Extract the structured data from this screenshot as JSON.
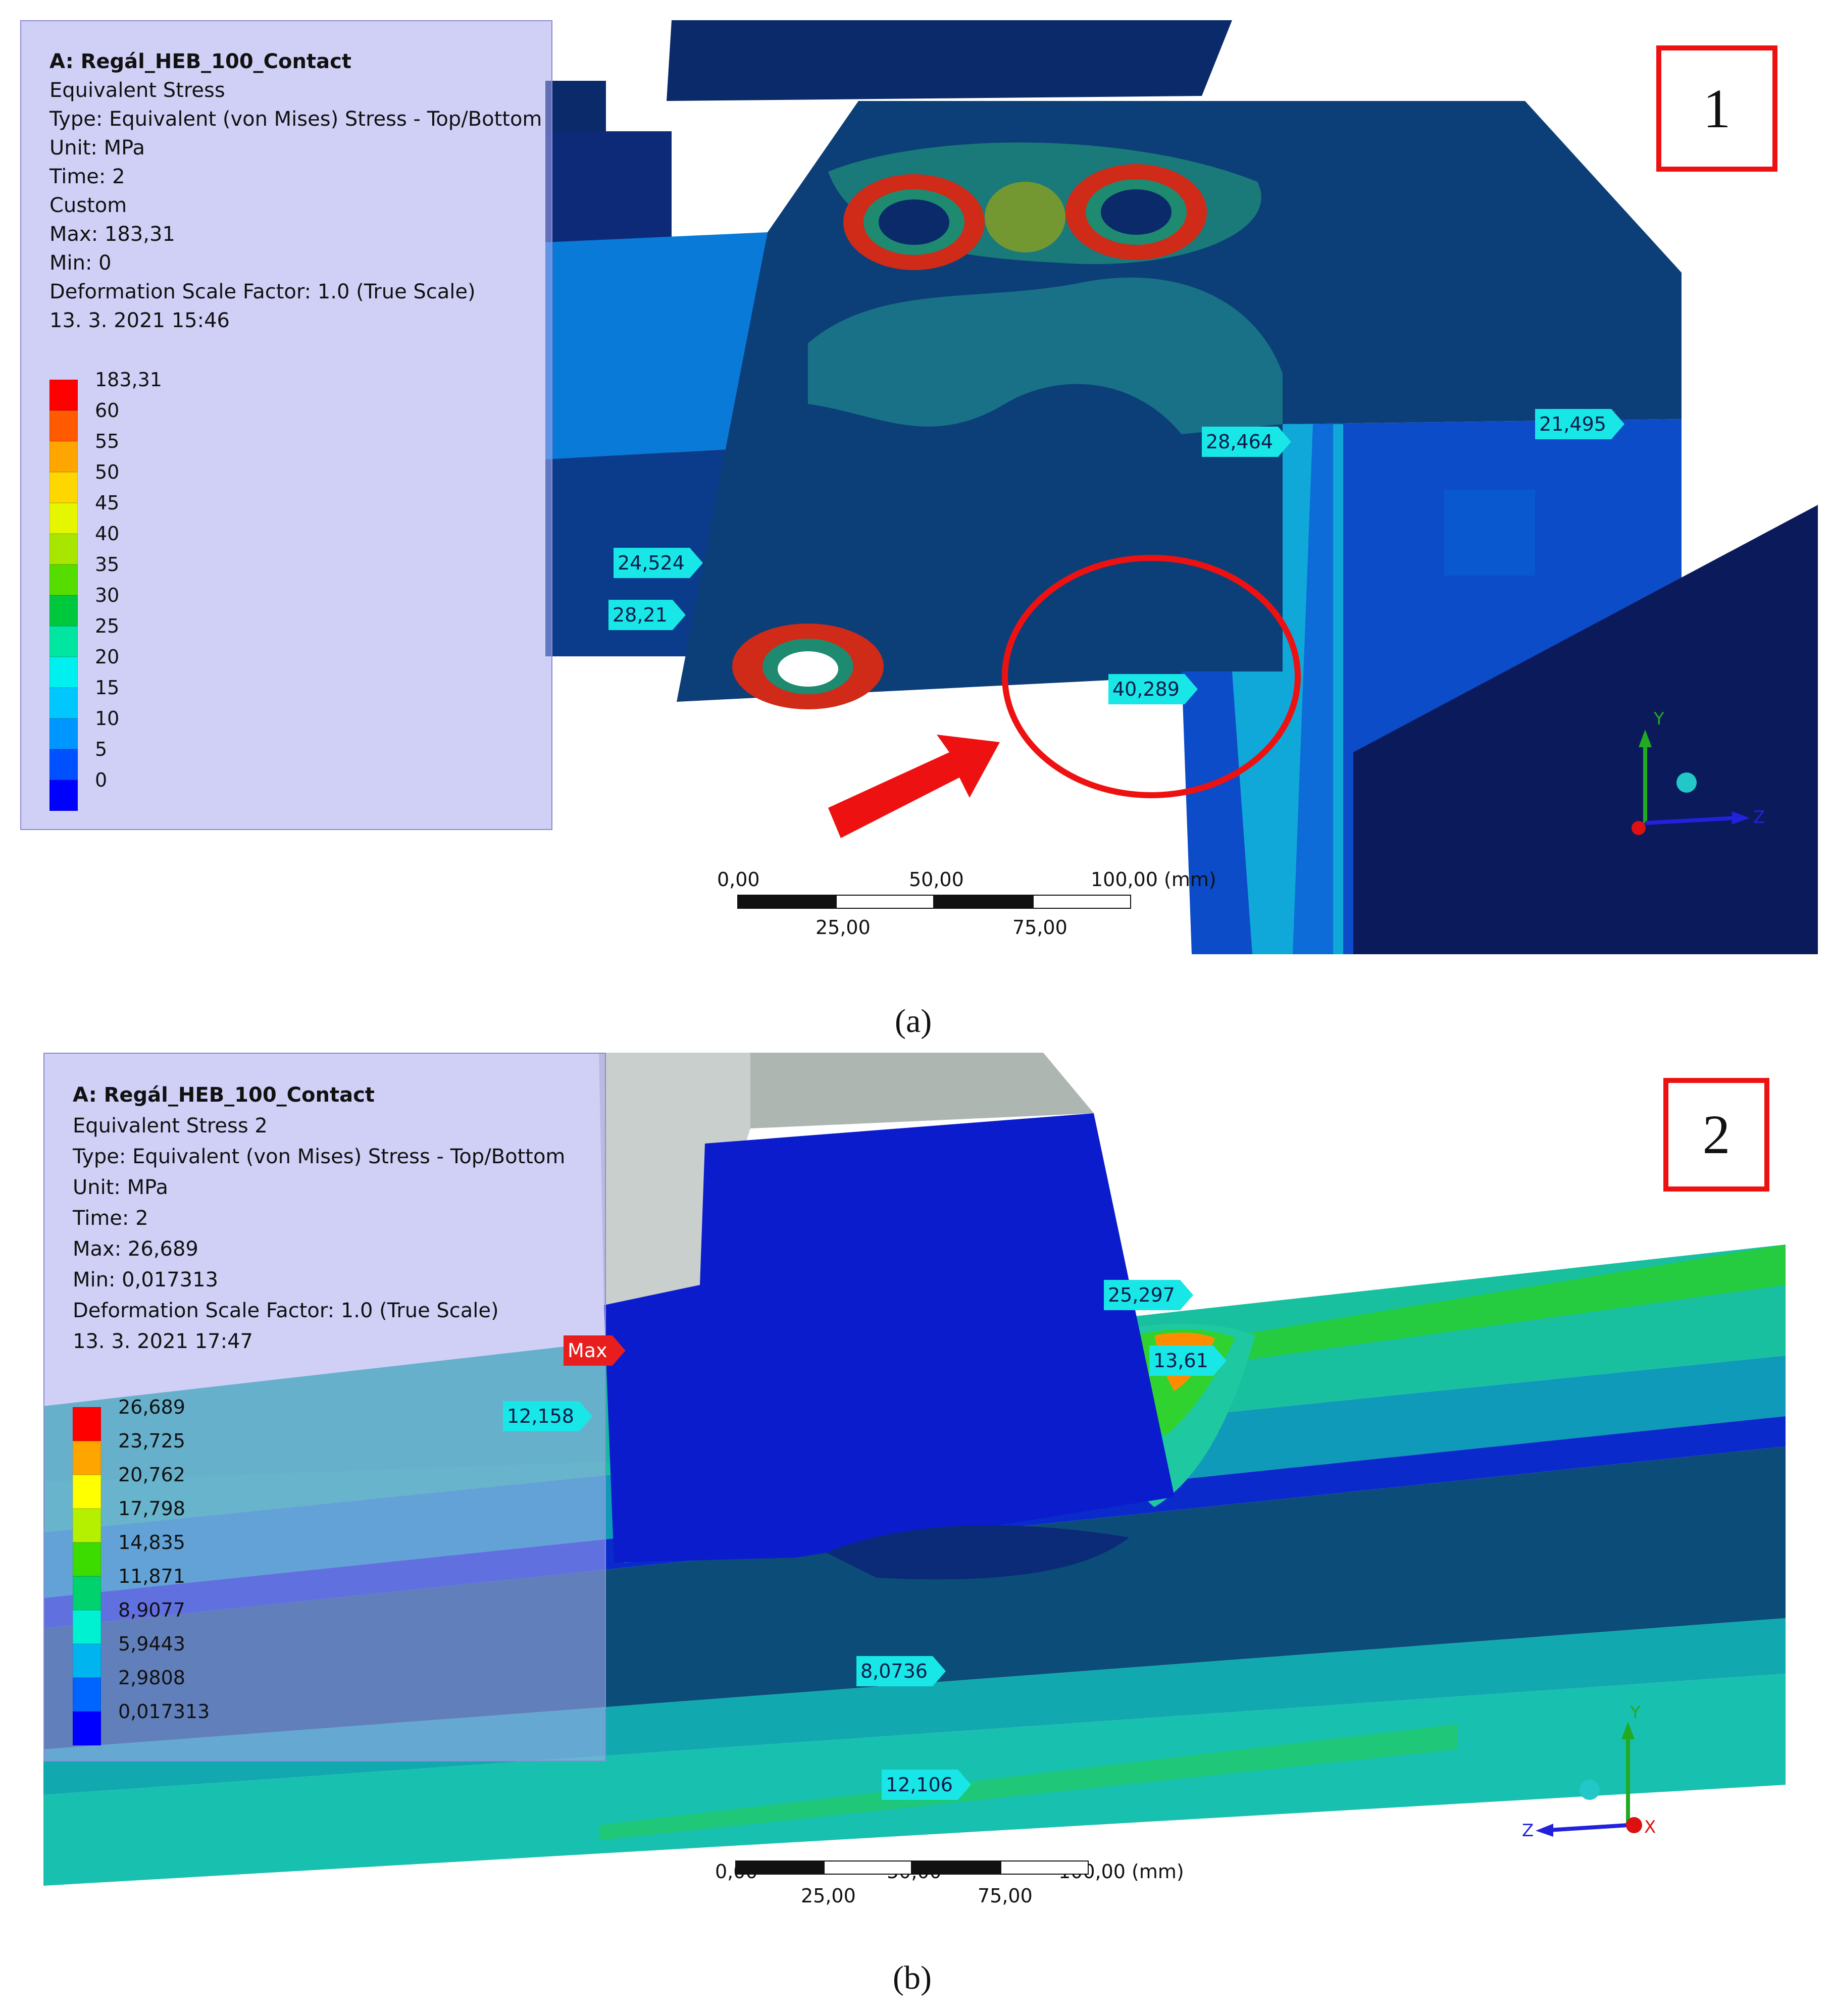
{
  "panel_a": {
    "info": {
      "title": "A: Regál_HEB_100_Contact",
      "result": "Equivalent Stress",
      "type": "Type: Equivalent (von Mises) Stress - Top/Bottom",
      "unit": "Unit: MPa",
      "time": "Time: 2",
      "mode": "Custom",
      "max": "Max: 183,31",
      "min": "Min: 0",
      "deformation": "Deformation Scale Factor: 1.0 (True Scale)",
      "date": "13. 3. 2021 15:46"
    },
    "legend": [
      {
        "label": "183,31",
        "color": "#ff0000"
      },
      {
        "label": "60",
        "color": "#ff5a00"
      },
      {
        "label": "55",
        "color": "#ffa500"
      },
      {
        "label": "50",
        "color": "#ffd700"
      },
      {
        "label": "45",
        "color": "#e6f500"
      },
      {
        "label": "40",
        "color": "#a8e600"
      },
      {
        "label": "35",
        "color": "#55dd00"
      },
      {
        "label": "30",
        "color": "#00c83c"
      },
      {
        "label": "25",
        "color": "#00e6a0"
      },
      {
        "label": "20",
        "color": "#00f0f0"
      },
      {
        "label": "15",
        "color": "#00c8ff"
      },
      {
        "label": "10",
        "color": "#0096ff"
      },
      {
        "label": "5",
        "color": "#0050ff"
      },
      {
        "label": "0",
        "color": "#0000ff"
      }
    ],
    "probes": [
      "24,524",
      "28,21",
      "28,464",
      "21,495",
      "40,289"
    ],
    "marker": "1",
    "scale": {
      "t0": "0,00",
      "t50": "50,00",
      "t100": "100,00 (mm)",
      "t25": "25,00",
      "t75": "75,00"
    },
    "axes": {
      "y": "Y",
      "z": "Z"
    },
    "caption": "(a)"
  },
  "panel_b": {
    "info": {
      "title": "A: Regál_HEB_100_Contact",
      "result": "Equivalent Stress 2",
      "type": "Type: Equivalent (von Mises) Stress - Top/Bottom",
      "unit": "Unit: MPa",
      "time": "Time: 2",
      "max": "Max: 26,689",
      "min": "Min: 0,017313",
      "deformation": "Deformation Scale Factor: 1.0 (True Scale)",
      "date": "13. 3. 2021 17:47"
    },
    "legend": [
      {
        "label": "26,689",
        "color": "#ff0000"
      },
      {
        "label": "23,725",
        "color": "#ffa500"
      },
      {
        "label": "20,762",
        "color": "#ffff00"
      },
      {
        "label": "17,798",
        "color": "#b4f000"
      },
      {
        "label": "14,835",
        "color": "#3cdc00"
      },
      {
        "label": "11,871",
        "color": "#00d26e"
      },
      {
        "label": "8,9077",
        "color": "#00f0d2"
      },
      {
        "label": "5,9443",
        "color": "#00b4f0"
      },
      {
        "label": "2,9808",
        "color": "#0064ff"
      },
      {
        "label": "0,017313",
        "color": "#0000ff"
      }
    ],
    "probes": [
      "Max",
      "25,297",
      "13,61",
      "12,158",
      "8,0736",
      "12,106"
    ],
    "marker": "2",
    "scale": {
      "t0": "0,00",
      "t50": "50,00",
      "t100": "100,00 (mm)",
      "t25": "25,00",
      "t75": "75,00"
    },
    "axes": {
      "y": "Y",
      "z": "Z",
      "x": "X"
    },
    "caption": "(b)"
  }
}
